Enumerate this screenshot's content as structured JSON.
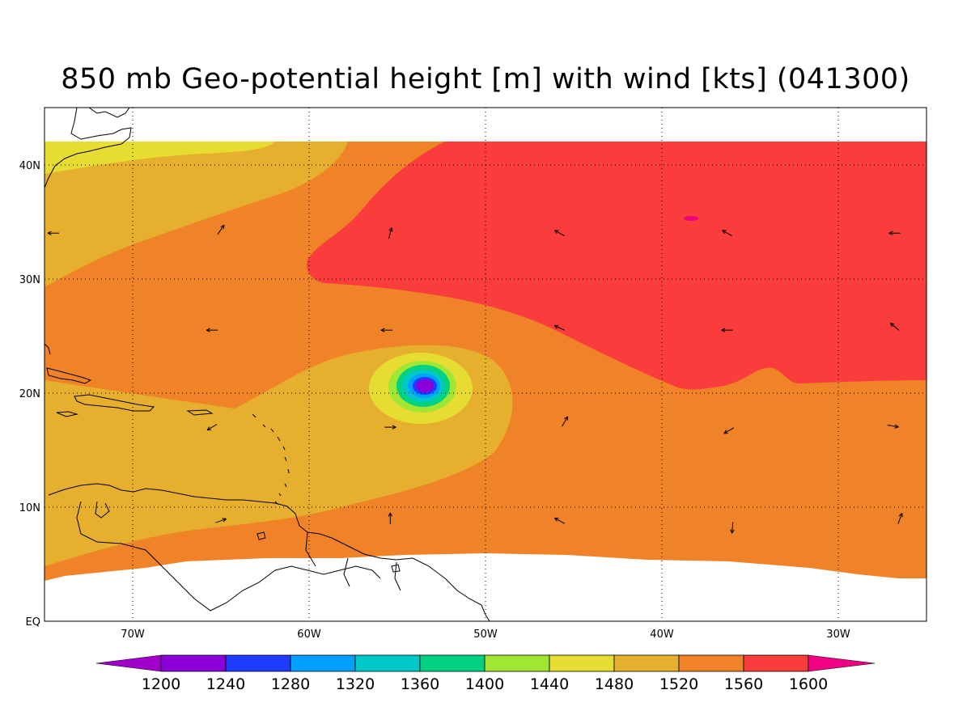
{
  "title": "850 mb Geo-potential height [m] with wind [kts] (041300)",
  "map": {
    "lat_labels": [
      "40N",
      "30N",
      "20N",
      "10N",
      "EQ"
    ],
    "lat_values": [
      40,
      30,
      20,
      10,
      0
    ],
    "lon_labels": [
      "70W",
      "60W",
      "50W",
      "40W",
      "30W"
    ],
    "lon_values": [
      -70,
      -60,
      -50,
      -40,
      -30
    ],
    "lon_range": [
      -75,
      -25
    ],
    "lat_range": [
      0,
      45
    ],
    "grid": "dotted",
    "low_center": {
      "lon": -53.3,
      "lat": 20.6
    }
  },
  "colorbar": {
    "levels": [
      "1200",
      "1240",
      "1280",
      "1320",
      "1360",
      "1400",
      "1440",
      "1480",
      "1520",
      "1560",
      "1600"
    ],
    "colors": [
      "#8b00d8",
      "#1e3cff",
      "#00a0ff",
      "#00c8c8",
      "#00d282",
      "#a0e632",
      "#e6dc32",
      "#e6af2d",
      "#f08228",
      "#fa3c3c",
      "#f00082"
    ],
    "low_extend_color": "#a000c8",
    "high_extend_color": "#f00082"
  },
  "wind_vectors": [
    {
      "lon": -74.5,
      "lat": 34.0,
      "dir": 270
    },
    {
      "lon": -65.0,
      "lat": 34.3,
      "dir": 35
    },
    {
      "lon": -55.4,
      "lat": 34.0,
      "dir": 15
    },
    {
      "lon": -45.8,
      "lat": 34.0,
      "dir": 300
    },
    {
      "lon": -36.3,
      "lat": 34.0,
      "dir": 300
    },
    {
      "lon": -26.8,
      "lat": 34.0,
      "dir": 270
    },
    {
      "lon": -65.5,
      "lat": 25.5,
      "dir": 270
    },
    {
      "lon": -55.6,
      "lat": 25.5,
      "dir": 270
    },
    {
      "lon": -45.8,
      "lat": 25.7,
      "dir": 295
    },
    {
      "lon": -36.3,
      "lat": 25.5,
      "dir": 270
    },
    {
      "lon": -26.8,
      "lat": 25.8,
      "dir": 310
    },
    {
      "lon": -65.5,
      "lat": 17.0,
      "dir": 240
    },
    {
      "lon": -55.4,
      "lat": 17.0,
      "dir": 90
    },
    {
      "lon": -45.5,
      "lat": 17.5,
      "dir": 30
    },
    {
      "lon": -36.2,
      "lat": 16.7,
      "dir": 240
    },
    {
      "lon": -26.9,
      "lat": 17.1,
      "dir": 100
    },
    {
      "lon": -65.0,
      "lat": 8.8,
      "dir": 70
    },
    {
      "lon": -55.4,
      "lat": 9.0,
      "dir": 0
    },
    {
      "lon": -45.8,
      "lat": 8.8,
      "dir": 300
    },
    {
      "lon": -36.0,
      "lat": 8.2,
      "dir": 185
    },
    {
      "lon": -26.5,
      "lat": 9.0,
      "dir": 20
    }
  ]
}
